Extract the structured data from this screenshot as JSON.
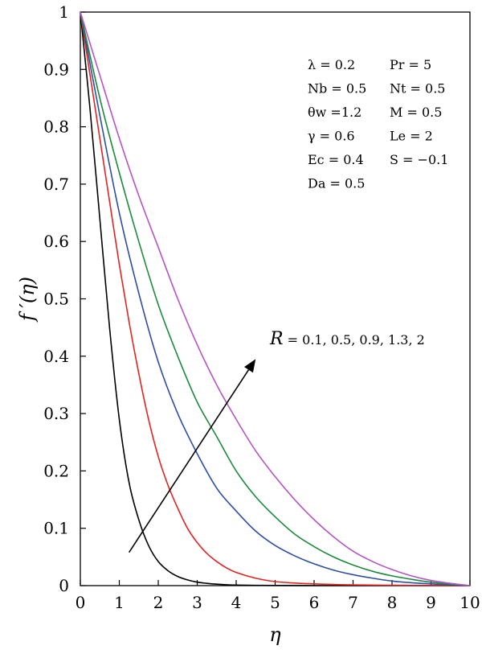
{
  "chart_data": {
    "type": "line",
    "xlabel": "η",
    "ylabel": "f ′(η)",
    "xlim": [
      0,
      10
    ],
    "ylim": [
      0,
      1
    ],
    "x_ticks": [
      "0",
      "1",
      "2",
      "3",
      "4",
      "5",
      "6",
      "7",
      "8",
      "9",
      "10"
    ],
    "y_ticks": [
      "0",
      "0.1",
      "0.2",
      "0.3",
      "0.4",
      "0.5",
      "0.6",
      "0.7",
      "0.8",
      "0.9",
      "1"
    ],
    "grid": false,
    "series": [
      {
        "color": "#000000",
        "x": [
          0,
          0.25,
          0.5,
          0.75,
          1,
          1.25,
          1.5,
          1.75,
          2,
          2.25,
          2.5,
          2.75,
          3,
          3.25,
          3.5,
          3.75,
          4,
          4.5,
          5,
          6,
          7,
          8,
          9,
          10
        ],
        "y": [
          1,
          0.83,
          0.64,
          0.45,
          0.29,
          0.18,
          0.115,
          0.07,
          0.042,
          0.026,
          0.016,
          0.01,
          0.006,
          0.004,
          0.0025,
          0.0015,
          0.001,
          0.0005,
          0.0002,
          0,
          0,
          0,
          0,
          0
        ]
      },
      {
        "color": "#e32322",
        "x": [
          0,
          0.25,
          0.5,
          0.75,
          1,
          1.25,
          1.5,
          1.75,
          2,
          2.25,
          2.5,
          2.75,
          3,
          3.25,
          3.5,
          3.75,
          4,
          4.5,
          5,
          5.5,
          6,
          6.5,
          7,
          8,
          9,
          10
        ],
        "y": [
          1,
          0.89,
          0.78,
          0.67,
          0.56,
          0.46,
          0.37,
          0.29,
          0.225,
          0.175,
          0.135,
          0.1,
          0.075,
          0.056,
          0.042,
          0.031,
          0.023,
          0.013,
          0.007,
          0.0045,
          0.003,
          0.002,
          0.0013,
          0.0006,
          0.0002,
          0
        ]
      },
      {
        "color": "#2c4fa3",
        "x": [
          0,
          0.5,
          1,
          1.5,
          2,
          2.5,
          3,
          3.5,
          4,
          4.5,
          5,
          5.5,
          6,
          6.5,
          7,
          7.5,
          8,
          8.5,
          9,
          9.5,
          10
        ],
        "y": [
          1,
          0.82,
          0.65,
          0.51,
          0.39,
          0.3,
          0.23,
          0.17,
          0.13,
          0.095,
          0.07,
          0.052,
          0.038,
          0.027,
          0.019,
          0.013,
          0.008,
          0.005,
          0.003,
          0.0013,
          0
        ]
      },
      {
        "color": "#1b8a3c",
        "x": [
          0,
          0.5,
          1,
          1.5,
          2,
          2.5,
          3,
          3.5,
          4,
          4.5,
          5,
          5.5,
          6,
          6.5,
          7,
          7.5,
          8,
          8.5,
          9,
          9.5,
          10
        ],
        "y": [
          1,
          0.85,
          0.72,
          0.6,
          0.49,
          0.4,
          0.32,
          0.26,
          0.2,
          0.155,
          0.12,
          0.09,
          0.068,
          0.05,
          0.036,
          0.025,
          0.017,
          0.011,
          0.006,
          0.0025,
          0
        ]
      },
      {
        "color": "#b455c2",
        "x": [
          0,
          0.5,
          1,
          1.5,
          2,
          2.5,
          3,
          3.5,
          4,
          4.5,
          5,
          5.5,
          6,
          6.5,
          7,
          7.5,
          8,
          8.5,
          9,
          9.5,
          10
        ],
        "y": [
          1,
          0.89,
          0.78,
          0.68,
          0.59,
          0.5,
          0.42,
          0.35,
          0.29,
          0.235,
          0.19,
          0.15,
          0.115,
          0.085,
          0.06,
          0.042,
          0.028,
          0.017,
          0.009,
          0.004,
          0
        ]
      }
    ],
    "annotations": {
      "params_left": [
        "λ = 0.2",
        "Nb = 0.5",
        "θw =1.2",
        "γ = 0.6",
        "Ec = 0.4",
        "Da = 0.5"
      ],
      "params_right": [
        "Pr = 5",
        "Nt = 0.5",
        "M = 0.5",
        "Le = 2",
        "S = −0.1"
      ],
      "arrow_symbol": "R",
      "arrow_values": " = 0.1, 0.5, 0.9, 1.3, 2",
      "arrow_from": [
        1.25,
        0.058
      ],
      "arrow_to": [
        4.5,
        0.395
      ]
    }
  }
}
